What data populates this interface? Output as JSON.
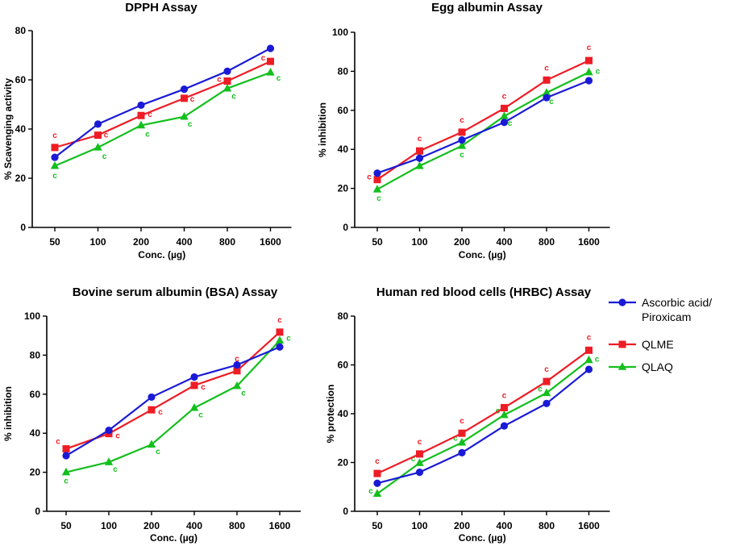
{
  "legend": {
    "entries": [
      {
        "lines": [
          "Ascorbic acid/",
          "Piroxicam"
        ],
        "color": "#1a1ad6",
        "marker": "circle"
      },
      {
        "lines": [
          "QLME"
        ],
        "color": "#ee1c25",
        "marker": "square"
      },
      {
        "lines": [
          "QLAQ"
        ],
        "color": "#13bf1d",
        "marker": "triangle"
      }
    ]
  },
  "chart_data": [
    {
      "type": "line",
      "title": "DPPH Assay",
      "xlabel": "Conc. (µg)",
      "ylabel": "% Scavenging activity",
      "categories": [
        "50",
        "100",
        "200",
        "400",
        "800",
        "1600"
      ],
      "ylim": [
        0,
        80
      ],
      "yticks": [
        0,
        20,
        40,
        60,
        80
      ],
      "series": [
        {
          "name": "Ascorbic acid/Piroxicam",
          "color": "#1a1ad6",
          "marker": "circle",
          "values": [
            28.5,
            42,
            49.7,
            56.2,
            63.5,
            72.8
          ]
        },
        {
          "name": "QLME",
          "color": "#ee1c25",
          "marker": "square",
          "values": [
            32.5,
            37.5,
            45.5,
            52.5,
            59.5,
            67.5
          ],
          "annotations": [
            "c",
            "c",
            "c",
            "c",
            "c",
            "c"
          ]
        },
        {
          "name": "QLAQ",
          "color": "#13bf1d",
          "marker": "triangle",
          "values": [
            25,
            32.5,
            41.5,
            45,
            56.5,
            63
          ],
          "annotations": [
            "c",
            "c",
            "c",
            "c",
            "c",
            "c"
          ]
        }
      ]
    },
    {
      "type": "line",
      "title": "Egg albumin Assay",
      "xlabel": "Conc. (µg)",
      "ylabel": "% inhibition",
      "categories": [
        "50",
        "100",
        "200",
        "400",
        "800",
        "1600"
      ],
      "ylim": [
        0,
        100
      ],
      "yticks": [
        0,
        20,
        40,
        60,
        80,
        100
      ],
      "series": [
        {
          "name": "Ascorbic acid/Piroxicam",
          "color": "#1a1ad6",
          "marker": "circle",
          "values": [
            27.8,
            35.5,
            44.8,
            53.8,
            66.5,
            75.2
          ]
        },
        {
          "name": "QLME",
          "color": "#ee1c25",
          "marker": "square",
          "values": [
            24.5,
            39.2,
            48.8,
            61,
            75.5,
            85.5
          ],
          "annotations": [
            "c",
            "c",
            "c",
            "c",
            "c",
            "c"
          ]
        },
        {
          "name": "QLAQ",
          "color": "#13bf1d",
          "marker": "triangle",
          "values": [
            19.5,
            31.5,
            41.8,
            57,
            69,
            79.5
          ],
          "annotations": [
            "c",
            "c",
            "c",
            "c",
            "c",
            "c"
          ]
        }
      ]
    },
    {
      "type": "line",
      "title": "Bovine serum albumin (BSA) Assay",
      "xlabel": "Conc. (µg)",
      "ylabel": "% inhibition",
      "categories": [
        "50",
        "100",
        "200",
        "400",
        "800",
        "1600"
      ],
      "ylim": [
        0,
        100
      ],
      "yticks": [
        0,
        20,
        40,
        60,
        80,
        100
      ],
      "series": [
        {
          "name": "Ascorbic acid/Piroxicam",
          "color": "#1a1ad6",
          "marker": "circle",
          "values": [
            28.5,
            41.5,
            58.5,
            68.8,
            75,
            84.2
          ]
        },
        {
          "name": "QLME",
          "color": "#ee1c25",
          "marker": "square",
          "values": [
            32,
            39.8,
            52,
            64.5,
            72,
            91.8
          ],
          "annotations": [
            "c",
            "c",
            "c",
            "c",
            "c",
            "c"
          ]
        },
        {
          "name": "QLAQ",
          "color": "#13bf1d",
          "marker": "triangle",
          "values": [
            20,
            25.2,
            34.2,
            53,
            64.2,
            87.5
          ],
          "annotations": [
            "c",
            "c",
            "c",
            "c",
            "c",
            "c"
          ]
        }
      ]
    },
    {
      "type": "line",
      "title": "Human red blood cells (HRBC) Assay",
      "xlabel": "Conc. (µg)",
      "ylabel": "% protection",
      "categories": [
        "50",
        "100",
        "200",
        "400",
        "800",
        "1600"
      ],
      "ylim": [
        0,
        80
      ],
      "yticks": [
        0,
        20,
        40,
        60,
        80
      ],
      "series": [
        {
          "name": "Ascorbic acid/Piroxicam",
          "color": "#1a1ad6",
          "marker": "circle",
          "values": [
            11.5,
            16,
            24,
            35,
            44.2,
            58.2
          ]
        },
        {
          "name": "QLME",
          "color": "#ee1c25",
          "marker": "square",
          "values": [
            15.5,
            23.5,
            32,
            42.5,
            53.2,
            66
          ],
          "annotations": [
            "c",
            "c",
            "c",
            "c",
            "c",
            "c"
          ]
        },
        {
          "name": "QLAQ",
          "color": "#13bf1d",
          "marker": "triangle",
          "values": [
            7.2,
            19.8,
            28.2,
            39.5,
            48.5,
            62
          ],
          "annotations": [
            "c",
            "c",
            "c",
            "c",
            "c",
            "c"
          ]
        }
      ]
    }
  ]
}
